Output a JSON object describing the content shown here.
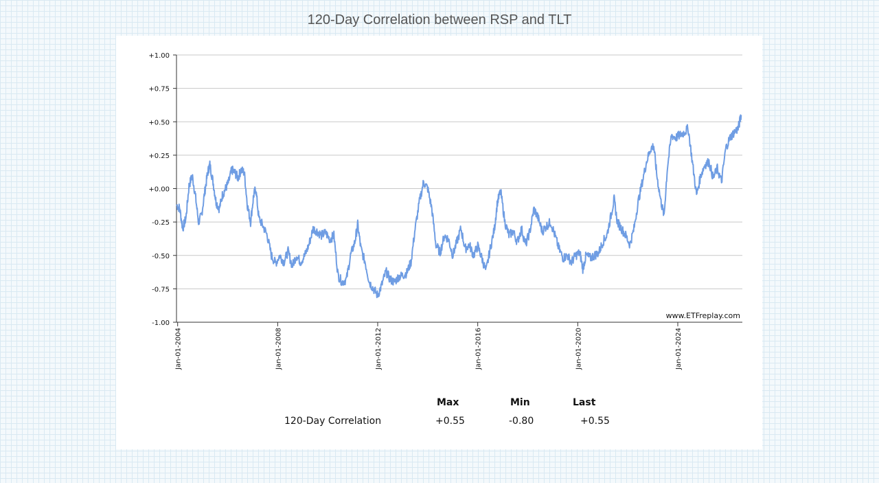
{
  "chart_data": {
    "type": "line",
    "title": "120-Day Correlation between RSP and TLT",
    "watermark": "www.ETFreplay.com",
    "xlabel": "",
    "ylabel": "",
    "ylim": [
      -1.0,
      1.0
    ],
    "xlim": [
      "2003-12-15",
      "2026-08-01"
    ],
    "y_ticks": [
      1.0,
      0.75,
      0.5,
      0.25,
      0.0,
      -0.25,
      -0.5,
      -0.75,
      -1.0
    ],
    "y_tick_labels": [
      "+1.00",
      "+0.75",
      "+0.50",
      "+0.25",
      "+0.00",
      "-0.25",
      "-0.50",
      "-0.75",
      "-1.00"
    ],
    "x_ticks": [
      "2004-01-01",
      "2008-01-01",
      "2012-01-01",
      "2016-01-01",
      "2020-01-01",
      "2024-01-01"
    ],
    "x_tick_labels": [
      "Jan-01-2004",
      "Jan-01-2008",
      "Jan-01-2012",
      "Jan-01-2016",
      "Jan-01-2020",
      "Jan-01-2024"
    ],
    "grid": true,
    "line_color": "#6f9de3",
    "series": [
      {
        "name": "120-Day Correlation",
        "points": [
          [
            "2003-12-15",
            -0.12
          ],
          [
            "2004-02-01",
            -0.15
          ],
          [
            "2004-03-15",
            -0.3
          ],
          [
            "2004-05-01",
            -0.22
          ],
          [
            "2004-06-15",
            0.02
          ],
          [
            "2004-08-01",
            0.1
          ],
          [
            "2004-09-15",
            -0.05
          ],
          [
            "2004-11-01",
            -0.25
          ],
          [
            "2004-12-15",
            -0.2
          ],
          [
            "2005-02-01",
            -0.02
          ],
          [
            "2005-03-15",
            0.12
          ],
          [
            "2005-04-15",
            0.18
          ],
          [
            "2005-06-01",
            0.05
          ],
          [
            "2005-07-15",
            -0.1
          ],
          [
            "2005-09-01",
            -0.15
          ],
          [
            "2005-10-15",
            -0.05
          ],
          [
            "2005-12-01",
            0.0
          ],
          [
            "2006-01-15",
            0.05
          ],
          [
            "2006-03-01",
            0.14
          ],
          [
            "2006-04-15",
            0.12
          ],
          [
            "2006-06-01",
            0.08
          ],
          [
            "2006-07-15",
            0.14
          ],
          [
            "2006-09-01",
            0.12
          ],
          [
            "2006-10-15",
            -0.12
          ],
          [
            "2006-12-01",
            -0.25
          ],
          [
            "2007-01-15",
            -0.05
          ],
          [
            "2007-02-15",
            0.0
          ],
          [
            "2007-04-01",
            -0.22
          ],
          [
            "2007-06-01",
            -0.28
          ],
          [
            "2007-08-01",
            -0.35
          ],
          [
            "2007-10-01",
            -0.5
          ],
          [
            "2007-12-01",
            -0.56
          ],
          [
            "2008-02-01",
            -0.5
          ],
          [
            "2008-04-01",
            -0.55
          ],
          [
            "2008-06-01",
            -0.47
          ],
          [
            "2008-08-01",
            -0.58
          ],
          [
            "2008-10-01",
            -0.5
          ],
          [
            "2008-12-01",
            -0.55
          ],
          [
            "2009-02-01",
            -0.5
          ],
          [
            "2009-04-01",
            -0.42
          ],
          [
            "2009-06-01",
            -0.3
          ],
          [
            "2009-08-01",
            -0.32
          ],
          [
            "2009-10-01",
            -0.35
          ],
          [
            "2009-12-01",
            -0.33
          ],
          [
            "2010-02-01",
            -0.38
          ],
          [
            "2010-04-01",
            -0.35
          ],
          [
            "2010-06-01",
            -0.65
          ],
          [
            "2010-08-01",
            -0.7
          ],
          [
            "2010-10-01",
            -0.68
          ],
          [
            "2010-12-01",
            -0.5
          ],
          [
            "2011-02-01",
            -0.4
          ],
          [
            "2011-03-15",
            -0.27
          ],
          [
            "2011-05-01",
            -0.45
          ],
          [
            "2011-07-01",
            -0.55
          ],
          [
            "2011-09-01",
            -0.7
          ],
          [
            "2011-11-01",
            -0.75
          ],
          [
            "2012-01-01",
            -0.8
          ],
          [
            "2012-03-01",
            -0.72
          ],
          [
            "2012-05-01",
            -0.62
          ],
          [
            "2012-07-01",
            -0.68
          ],
          [
            "2012-09-01",
            -0.7
          ],
          [
            "2012-11-01",
            -0.66
          ],
          [
            "2013-01-01",
            -0.65
          ],
          [
            "2013-03-01",
            -0.63
          ],
          [
            "2013-05-01",
            -0.55
          ],
          [
            "2013-07-01",
            -0.3
          ],
          [
            "2013-09-01",
            -0.1
          ],
          [
            "2013-11-01",
            0.05
          ],
          [
            "2014-01-01",
            0.0
          ],
          [
            "2014-03-01",
            -0.15
          ],
          [
            "2014-05-01",
            -0.42
          ],
          [
            "2014-07-01",
            -0.48
          ],
          [
            "2014-09-01",
            -0.35
          ],
          [
            "2014-11-01",
            -0.38
          ],
          [
            "2015-01-01",
            -0.5
          ],
          [
            "2015-03-01",
            -0.4
          ],
          [
            "2015-05-01",
            -0.3
          ],
          [
            "2015-07-01",
            -0.45
          ],
          [
            "2015-09-01",
            -0.42
          ],
          [
            "2015-11-01",
            -0.5
          ],
          [
            "2016-01-01",
            -0.43
          ],
          [
            "2016-03-01",
            -0.52
          ],
          [
            "2016-05-01",
            -0.62
          ],
          [
            "2016-07-01",
            -0.45
          ],
          [
            "2016-09-01",
            -0.3
          ],
          [
            "2016-10-15",
            -0.1
          ],
          [
            "2016-12-01",
            -0.02
          ],
          [
            "2017-02-01",
            -0.25
          ],
          [
            "2017-04-01",
            -0.35
          ],
          [
            "2017-06-01",
            -0.32
          ],
          [
            "2017-08-01",
            -0.4
          ],
          [
            "2017-10-01",
            -0.3
          ],
          [
            "2017-12-01",
            -0.42
          ],
          [
            "2018-02-01",
            -0.32
          ],
          [
            "2018-04-01",
            -0.15
          ],
          [
            "2018-06-01",
            -0.22
          ],
          [
            "2018-08-01",
            -0.32
          ],
          [
            "2018-10-01",
            -0.28
          ],
          [
            "2018-12-01",
            -0.25
          ],
          [
            "2019-02-01",
            -0.35
          ],
          [
            "2019-04-01",
            -0.45
          ],
          [
            "2019-06-01",
            -0.52
          ],
          [
            "2019-08-01",
            -0.5
          ],
          [
            "2019-10-01",
            -0.55
          ],
          [
            "2019-12-01",
            -0.5
          ],
          [
            "2020-02-01",
            -0.48
          ],
          [
            "2020-03-15",
            -0.6
          ],
          [
            "2020-05-01",
            -0.5
          ],
          [
            "2020-07-01",
            -0.52
          ],
          [
            "2020-09-01",
            -0.5
          ],
          [
            "2020-11-01",
            -0.48
          ],
          [
            "2021-01-01",
            -0.4
          ],
          [
            "2021-03-01",
            -0.35
          ],
          [
            "2021-05-01",
            -0.2
          ],
          [
            "2021-06-15",
            -0.08
          ],
          [
            "2021-08-01",
            -0.25
          ],
          [
            "2021-10-01",
            -0.3
          ],
          [
            "2021-12-01",
            -0.35
          ],
          [
            "2022-02-01",
            -0.42
          ],
          [
            "2022-04-01",
            -0.3
          ],
          [
            "2022-06-01",
            -0.1
          ],
          [
            "2022-08-01",
            0.05
          ],
          [
            "2022-10-01",
            0.2
          ],
          [
            "2022-12-01",
            0.3
          ],
          [
            "2023-01-15",
            0.32
          ],
          [
            "2023-03-01",
            0.1
          ],
          [
            "2023-05-01",
            -0.1
          ],
          [
            "2023-06-15",
            -0.2
          ],
          [
            "2023-08-01",
            0.15
          ],
          [
            "2023-10-01",
            0.4
          ],
          [
            "2023-12-01",
            0.38
          ],
          [
            "2024-02-01",
            0.4
          ],
          [
            "2024-04-01",
            0.42
          ],
          [
            "2024-06-01",
            0.45
          ],
          [
            "2024-08-01",
            0.2
          ],
          [
            "2024-10-01",
            -0.05
          ],
          [
            "2024-12-01",
            0.1
          ],
          [
            "2025-02-01",
            0.18
          ],
          [
            "2025-04-01",
            0.2
          ],
          [
            "2025-06-01",
            0.08
          ],
          [
            "2025-08-01",
            0.15
          ],
          [
            "2025-10-01",
            0.05
          ],
          [
            "2025-12-01",
            0.3
          ],
          [
            "2026-02-01",
            0.38
          ],
          [
            "2026-04-01",
            0.42
          ],
          [
            "2026-06-01",
            0.45
          ],
          [
            "2026-07-15",
            0.55
          ]
        ]
      }
    ]
  },
  "summary": {
    "headers": [
      "Max",
      "Min",
      "Last"
    ],
    "row_label": "120-Day Correlation",
    "values": [
      "+0.55",
      "-0.80",
      "+0.55"
    ]
  }
}
